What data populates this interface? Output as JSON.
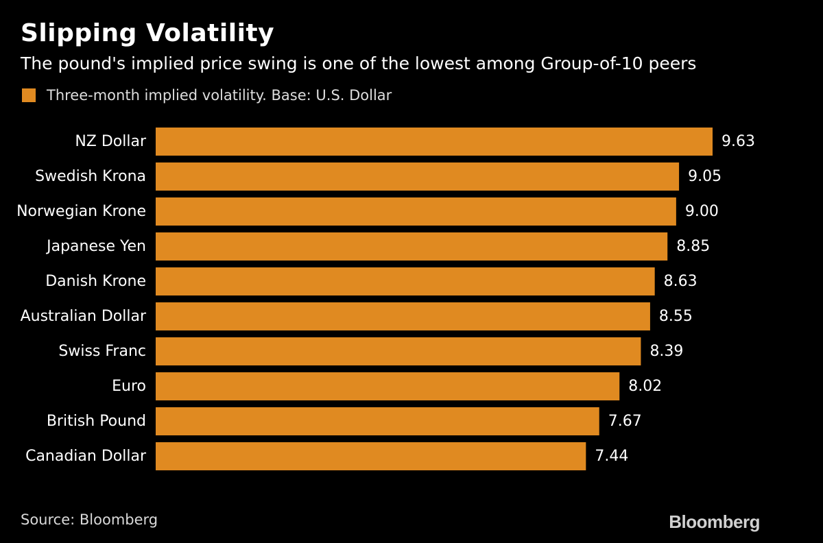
{
  "header": {
    "title": "Slipping Volatility",
    "subtitle": "The pound's implied price swing is one of the lowest among Group-of-10 peers"
  },
  "legend": {
    "label": "Three-month implied volatility. Base: U.S. Dollar"
  },
  "footer": {
    "source": "Source: Bloomberg",
    "brand": "Bloomberg"
  },
  "colors": {
    "bar": "#e08a21",
    "background": "#000000",
    "text": "#ffffff"
  },
  "chart_data": {
    "type": "bar",
    "orientation": "horizontal",
    "title": "Slipping Volatility",
    "subtitle": "The pound's implied price swing is one of the lowest among Group-of-10 peers",
    "categories": [
      "NZ Dollar",
      "Swedish Krona",
      "Norwegian Krone",
      "Japanese Yen",
      "Danish Krone",
      "Australian Dollar",
      "Swiss Franc",
      "Euro",
      "British Pound",
      "Canadian Dollar"
    ],
    "series": [
      {
        "name": "Three-month implied volatility. Base: U.S. Dollar",
        "values": [
          9.63,
          9.05,
          9.0,
          8.85,
          8.63,
          8.55,
          8.39,
          8.02,
          7.67,
          7.44
        ],
        "labels": [
          "9.63",
          "9.05",
          "9.00",
          "8.85",
          "8.63",
          "8.55",
          "8.39",
          "8.02",
          "7.67",
          "7.44"
        ]
      }
    ],
    "xlim": [
      0,
      9.63
    ],
    "grid": false,
    "legend_position": "top-left",
    "data_labels": true
  }
}
